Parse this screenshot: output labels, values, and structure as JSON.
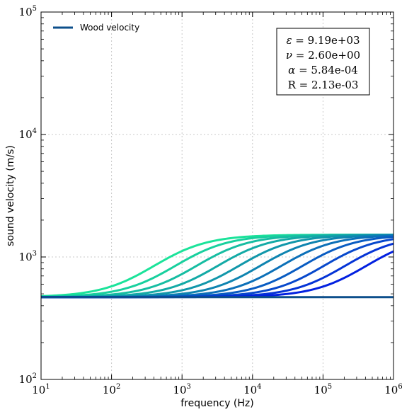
{
  "chart_data": {
    "type": "line",
    "title": "",
    "xlabel": "frequency (Hz)",
    "ylabel": "sound velocity (m/s)",
    "xscale": "log",
    "yscale": "log",
    "xlim": [
      10,
      1000000
    ],
    "ylim": [
      100,
      100000
    ],
    "grid": true,
    "legend": {
      "placement": "top-left",
      "entries": [
        "Wood velocity"
      ]
    },
    "x_tick_labels": [
      {
        "base": "10",
        "exp": "1"
      },
      {
        "base": "10",
        "exp": "2"
      },
      {
        "base": "10",
        "exp": "3"
      },
      {
        "base": "10",
        "exp": "4"
      },
      {
        "base": "10",
        "exp": "5"
      },
      {
        "base": "10",
        "exp": "6"
      }
    ],
    "y_tick_labels": [
      {
        "base": "10",
        "exp": "2"
      },
      {
        "base": "10",
        "exp": "3"
      },
      {
        "base": "10",
        "exp": "4"
      },
      {
        "base": "10",
        "exp": "5"
      }
    ],
    "annotation": [
      {
        "symbol": "ε",
        "text": " = 9.19e+03"
      },
      {
        "symbol": "ν",
        "text": " = 2.60e+00"
      },
      {
        "symbol": "α",
        "text": " = 5.84e-04"
      },
      {
        "symbol": "R",
        "text": " = 2.13e-03"
      }
    ],
    "low_value": 470,
    "high_value": 1520,
    "series": [
      {
        "name": "Wood velocity",
        "color": "#0d4f8b",
        "values": {
          "x": [
            10,
            1000000
          ],
          "y": [
            470,
            470
          ]
        }
      },
      {
        "color": "#1be39a",
        "transition_center_hz": 400
      },
      {
        "color": "#18d09e",
        "transition_center_hz": 800
      },
      {
        "color": "#16bda2",
        "transition_center_hz": 1600
      },
      {
        "color": "#13aaa6",
        "transition_center_hz": 3200
      },
      {
        "color": "#1197aa",
        "transition_center_hz": 6400
      },
      {
        "color": "#0e84b0",
        "transition_center_hz": 12800
      },
      {
        "color": "#0c70b8",
        "transition_center_hz": 25600
      },
      {
        "color": "#095cc2",
        "transition_center_hz": 51200
      },
      {
        "color": "#0748cc",
        "transition_center_hz": 102400
      },
      {
        "color": "#0534d6",
        "transition_center_hz": 204800
      },
      {
        "color": "#0220e0",
        "transition_center_hz": 409600
      }
    ]
  }
}
